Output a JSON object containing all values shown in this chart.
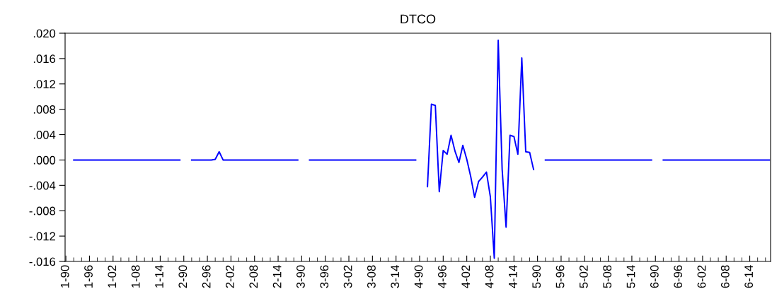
{
  "chart_data": {
    "type": "line",
    "title": "DTCO",
    "categories": [
      "1-90",
      null,
      null,
      null,
      null,
      null,
      "1-96",
      null,
      null,
      null,
      null,
      null,
      "1-02",
      null,
      null,
      null,
      null,
      null,
      "1-08",
      null,
      null,
      null,
      null,
      null,
      "1-14",
      null,
      null,
      null,
      null,
      null,
      "2-90",
      null,
      null,
      null,
      null,
      null,
      "2-96",
      null,
      null,
      null,
      null,
      null,
      "2-02",
      null,
      null,
      null,
      null,
      null,
      "2-08",
      null,
      null,
      null,
      null,
      null,
      "2-14",
      null,
      null,
      null,
      null,
      null,
      "3-90",
      null,
      null,
      null,
      null,
      null,
      "3-96",
      null,
      null,
      null,
      null,
      null,
      "3-02",
      null,
      null,
      null,
      null,
      null,
      "3-08",
      null,
      null,
      null,
      null,
      null,
      "3-14",
      null,
      null,
      null,
      null,
      null,
      "4-90",
      null,
      null,
      null,
      null,
      null,
      "4-96",
      null,
      null,
      null,
      null,
      null,
      "4-02",
      null,
      null,
      null,
      null,
      null,
      "4-08",
      null,
      null,
      null,
      null,
      null,
      "4-14",
      null,
      null,
      null,
      null,
      null,
      "5-90",
      null,
      null,
      null,
      null,
      null,
      "5-96",
      null,
      null,
      null,
      null,
      null,
      "5-02",
      null,
      null,
      null,
      null,
      null,
      "5-08",
      null,
      null,
      null,
      null,
      null,
      "5-14",
      null,
      null,
      null,
      null,
      null,
      "6-90",
      null,
      null,
      null,
      null,
      null,
      "6-96",
      null,
      null,
      null,
      null,
      null,
      "6-02",
      null,
      null,
      null,
      null,
      null,
      "6-08",
      null,
      null,
      null,
      null,
      null,
      "6-14",
      null,
      null,
      null,
      null,
      null
    ],
    "series": [
      {
        "color": "#0000ff",
        "values": [
          null,
          null,
          0,
          0,
          0,
          0,
          0,
          0,
          0,
          0,
          0,
          0,
          0,
          0,
          0,
          0,
          0,
          0,
          0,
          0,
          0,
          0,
          0,
          0,
          0,
          0,
          0,
          0,
          0,
          0,
          null,
          null,
          0,
          0,
          0,
          0,
          0,
          0,
          0.0001,
          0.0013,
          0,
          0,
          0,
          0,
          0,
          0,
          0,
          0,
          0,
          0,
          0,
          0,
          0,
          0,
          0,
          0,
          0,
          0,
          0,
          0,
          null,
          null,
          0,
          0,
          0,
          0,
          0,
          0,
          0,
          0,
          0,
          0,
          0,
          0,
          0,
          0,
          0,
          0,
          0,
          0,
          0,
          0,
          0,
          0,
          0,
          0,
          0,
          0,
          0,
          0,
          null,
          null,
          -0.0042,
          0.0088,
          0.0086,
          -0.005,
          0.0015,
          0.0009,
          0.0039,
          0.0014,
          -0.0004,
          0.0023,
          0.0001,
          -0.0026,
          -0.0059,
          -0.0034,
          -0.0027,
          -0.0019,
          -0.0058,
          -0.0155,
          0.0189,
          -0.0015,
          -0.0106,
          0.0039,
          0.0037,
          0.0009,
          0.0161,
          0.0013,
          0.0012,
          -0.0015,
          null,
          null,
          0,
          0,
          0,
          0,
          0,
          0,
          0,
          0,
          0,
          0,
          0,
          0,
          0,
          0,
          0,
          0,
          0,
          0,
          0,
          0,
          0,
          0,
          0,
          0,
          0,
          0,
          0,
          0,
          null,
          null,
          0,
          0,
          0,
          0,
          0,
          0,
          0,
          0,
          0,
          0,
          0,
          0,
          0,
          0,
          0,
          0,
          0,
          0,
          0,
          0,
          0,
          0,
          0,
          0,
          0,
          0,
          0,
          0
        ]
      }
    ],
    "ylim": [
      -0.016,
      0.02
    ],
    "yticks": [
      {
        "value": -0.016,
        "label": "-.016"
      },
      {
        "value": -0.012,
        "label": "-.012"
      },
      {
        "value": -0.008,
        "label": "-.008"
      },
      {
        "value": -0.004,
        "label": "-.004"
      },
      {
        "value": 0.0,
        "label": ".000"
      },
      {
        "value": 0.004,
        "label": ".004"
      },
      {
        "value": 0.008,
        "label": ".008"
      },
      {
        "value": 0.012,
        "label": ".012"
      },
      {
        "value": 0.016,
        "label": ".016"
      },
      {
        "value": 0.02,
        "label": ".020"
      }
    ],
    "grid": false,
    "marker": "none",
    "line_style": "solid"
  }
}
